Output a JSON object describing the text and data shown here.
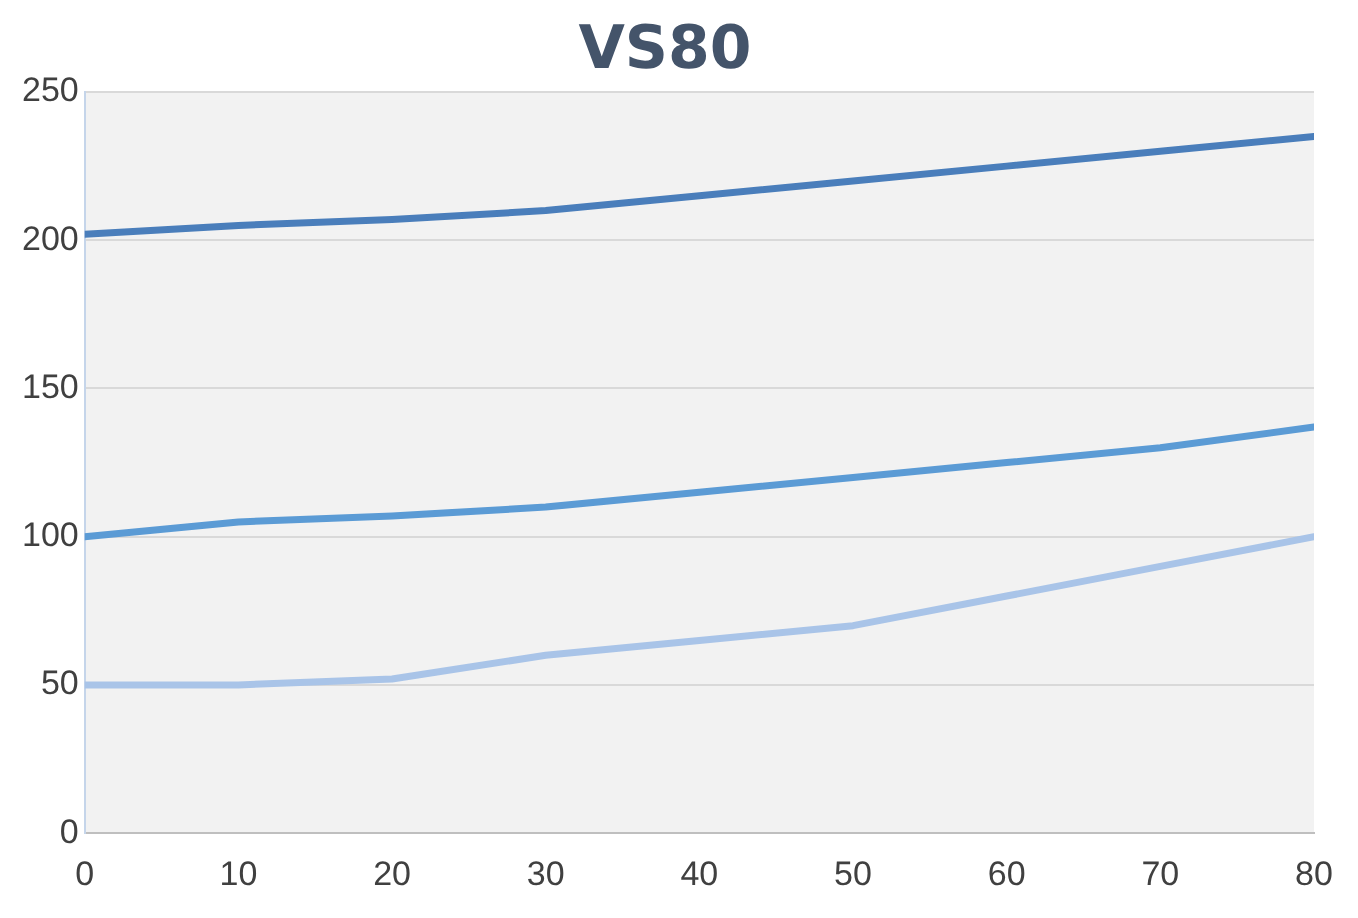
{
  "chart_data": {
    "type": "line",
    "title": "VS80",
    "x": [
      0,
      10,
      20,
      30,
      40,
      50,
      60,
      70,
      80
    ],
    "series": [
      {
        "color": "#4a7ebb",
        "values": [
          202,
          205,
          207,
          210,
          215,
          220,
          225,
          230,
          235
        ]
      },
      {
        "color": "#5b9bd5",
        "values": [
          100,
          105,
          107,
          110,
          115,
          120,
          125,
          130,
          137
        ]
      },
      {
        "color": "#a9c4e8",
        "values": [
          50,
          50,
          52,
          60,
          65,
          70,
          80,
          90,
          100
        ]
      }
    ],
    "xlim": [
      0,
      80
    ],
    "xticks": [
      0,
      10,
      20,
      30,
      40,
      50,
      60,
      70,
      80
    ],
    "ylim": [
      0,
      250
    ],
    "yticks": [
      0,
      50,
      100,
      150,
      200,
      250
    ],
    "grid": "y",
    "legend": false,
    "marker": "none",
    "line_style": "solid"
  }
}
